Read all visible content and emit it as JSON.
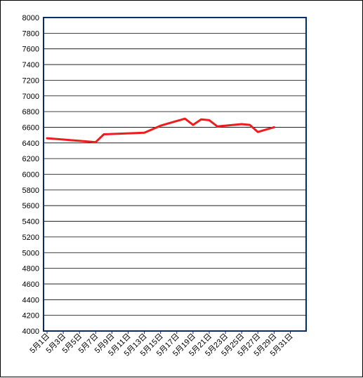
{
  "chart_data": {
    "type": "line",
    "title": "",
    "xlabel": "",
    "ylabel": "",
    "ylim": [
      4000,
      8000
    ],
    "y_ticks": [
      4000,
      4200,
      4400,
      4600,
      4800,
      5000,
      5200,
      5400,
      5600,
      5800,
      6000,
      6200,
      6400,
      6600,
      6800,
      7000,
      7200,
      7400,
      7600,
      7800,
      8000
    ],
    "x_days": [
      1,
      31
    ],
    "x_tick_labels": [
      "5月1日",
      "5月3日",
      "5月5日",
      "5月7日",
      "5月9日",
      "5月11日",
      "5月13日",
      "5月15日",
      "5月17日",
      "5月19日",
      "5月21日",
      "5月23日",
      "5月25日",
      "5月27日",
      "5月29日",
      "5月31日"
    ],
    "grid": true,
    "legend": "none",
    "series": [
      {
        "color": "#ee1c1c",
        "x": [
          1,
          7,
          8,
          13,
          15,
          18,
          19,
          20,
          21,
          22,
          25,
          26,
          27,
          29
        ],
        "values": [
          6460,
          6410,
          6510,
          6530,
          6620,
          6710,
          6630,
          6700,
          6690,
          6610,
          6640,
          6630,
          6540,
          6600
        ]
      }
    ],
    "colors": {
      "plot_border": "#0a2a6e",
      "grid": "#000000",
      "line": "#ee1c1c"
    }
  }
}
